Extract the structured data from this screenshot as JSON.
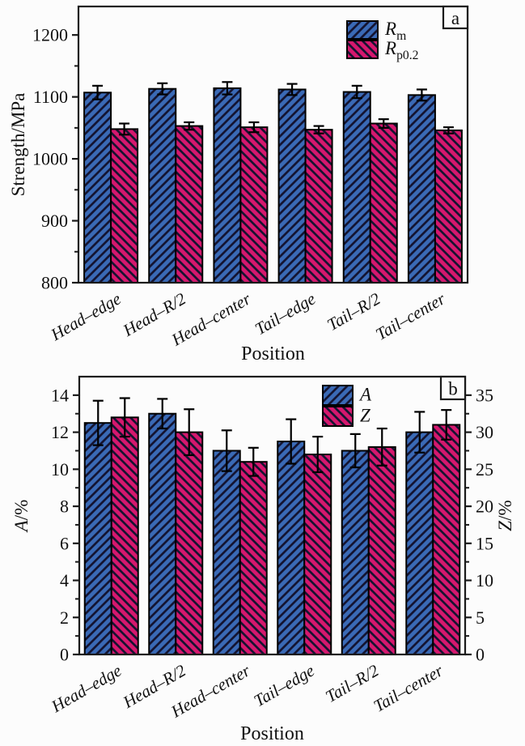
{
  "figure": {
    "xlabel": "Position",
    "categories": [
      "Head–edge",
      "Head–R/2",
      "Head–center",
      "Tail–edge",
      "Tail–R/2",
      "Tail–center"
    ]
  },
  "colors": {
    "bar_blue": "#3a6ab6",
    "bar_crimson": "#d6186e",
    "hatch_line": "#131330",
    "axis": "#1a1a1a",
    "background": "#fcfcfc"
  },
  "chart_data": [
    {
      "type": "bar",
      "panel_letter": "a",
      "title": "",
      "xlabel": "Position",
      "ylabel_runs": [
        {
          "t": "Strength/MPa"
        }
      ],
      "categories": [
        "Head–edge",
        "Head–R/2",
        "Head–center",
        "Tail–edge",
        "Tail–R/2",
        "Tail–center"
      ],
      "y_axis": {
        "lim": [
          800,
          1246
        ],
        "ticks": [
          800,
          900,
          1000,
          1100,
          1200
        ],
        "minor_step": 50
      },
      "legend_position": "top-center-right",
      "grid": false,
      "series": [
        {
          "id": "Rm",
          "name_runs": [
            {
              "t": "R",
              "i": true
            },
            {
              "t": "m",
              "sub": true
            }
          ],
          "color_key": "bar_blue",
          "hatch": "fwd",
          "axis": "y",
          "values": [
            1107,
            1113,
            1114,
            1112,
            1108,
            1103
          ],
          "errors": [
            11,
            9,
            10,
            9,
            10,
            9
          ]
        },
        {
          "id": "Rp0.2",
          "name_runs": [
            {
              "t": "R",
              "i": true
            },
            {
              "t": "p0.2",
              "sub": true
            }
          ],
          "color_key": "bar_crimson",
          "hatch": "bwd",
          "axis": "y",
          "values": [
            1048,
            1053,
            1051,
            1047,
            1057,
            1046
          ],
          "errors": [
            9,
            6,
            8,
            6,
            7,
            5
          ]
        }
      ]
    },
    {
      "type": "bar",
      "panel_letter": "b",
      "title": "",
      "xlabel": "Position",
      "ylabel_runs": [
        {
          "t": "A",
          "i": true
        },
        {
          "t": "/%"
        }
      ],
      "y2label_runs": [
        {
          "t": "Z",
          "i": true
        },
        {
          "t": "/%"
        }
      ],
      "categories": [
        "Head–edge",
        "Head–R/2",
        "Head–center",
        "Tail–edge",
        "Tail–R/2",
        "Tail–center"
      ],
      "y_axis": {
        "lim": [
          0,
          15
        ],
        "ticks": [
          0,
          2,
          4,
          6,
          8,
          10,
          12,
          14
        ],
        "minor_step": 1
      },
      "y2_axis": {
        "lim": [
          0,
          37.5
        ],
        "ticks": [
          0,
          5,
          10,
          15,
          20,
          25,
          30,
          35
        ],
        "minor_step": 2.5
      },
      "legend_position": "top-center-right",
      "grid": false,
      "series": [
        {
          "id": "A",
          "name_runs": [
            {
              "t": "A",
              "i": true
            }
          ],
          "color_key": "bar_blue",
          "hatch": "fwd",
          "axis": "y",
          "values": [
            12.5,
            13.0,
            11.0,
            11.5,
            11.0,
            12.0
          ],
          "errors": [
            1.2,
            0.8,
            1.1,
            1.2,
            0.9,
            1.1
          ]
        },
        {
          "id": "Z",
          "name_runs": [
            {
              "t": "Z",
              "i": true
            }
          ],
          "color_key": "bar_crimson",
          "hatch": "bwd",
          "axis": "y2",
          "values": [
            32,
            30,
            26,
            27,
            28,
            31
          ],
          "errors": [
            2.6,
            3.1,
            1.9,
            2.4,
            2.5,
            2.0
          ]
        }
      ]
    }
  ]
}
